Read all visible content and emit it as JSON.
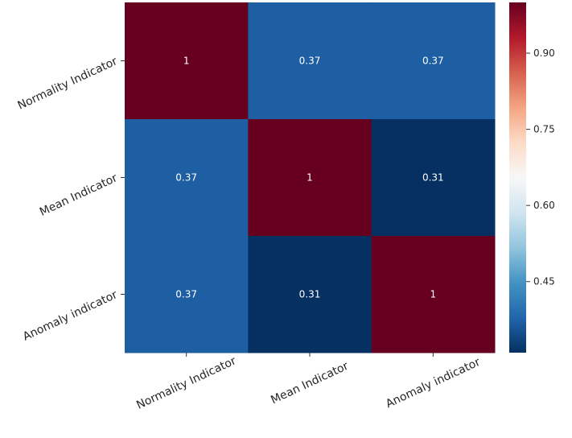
{
  "chart_data": {
    "type": "heatmap",
    "title": "",
    "xlabel": "",
    "ylabel": "",
    "rows": [
      "Normality Indicator",
      "Mean Indicator",
      "Anomaly indicator"
    ],
    "columns": [
      "Normality Indicator",
      "Mean Indicator",
      "Anomaly indicator"
    ],
    "values": [
      [
        1,
        0.37,
        0.37
      ],
      [
        0.37,
        1,
        0.31
      ],
      [
        0.37,
        0.31,
        1
      ]
    ],
    "annotations": [
      [
        "1",
        "0.37",
        "0.37"
      ],
      [
        "0.37",
        "1",
        "0.31"
      ],
      [
        "0.37",
        "0.31",
        "1"
      ]
    ],
    "colormap": "RdBu_r",
    "colorbar": {
      "vmin": 0.31,
      "vmax": 1,
      "ticks": [
        0.45,
        0.6,
        0.75,
        0.9
      ],
      "tick_labels": [
        "0.45",
        "0.60",
        "0.75",
        "0.90"
      ]
    },
    "colorscale_stops": [
      "#053061",
      "#2166ac",
      "#4393c3",
      "#92c5de",
      "#d1e5f0",
      "#f7f7f7",
      "#fddbc7",
      "#f4a582",
      "#d6604d",
      "#b2182b",
      "#67001f"
    ]
  }
}
